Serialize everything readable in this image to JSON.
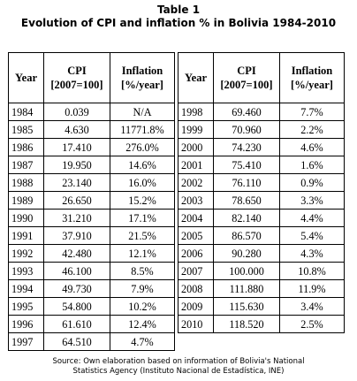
{
  "caption": {
    "title": "Table 1",
    "subtitle": "Evolution of CPI and inflation % in Bolivia 1984-2010"
  },
  "headers": {
    "year": "Year",
    "cpi_line1": "CPI",
    "cpi_line2": "[2007=100]",
    "inflation_line1": "Inflation",
    "inflation_line2": "[%/year]"
  },
  "left_rows": [
    {
      "year": "1984",
      "cpi": "0.039",
      "inflation": "N/A"
    },
    {
      "year": "1985",
      "cpi": "4.630",
      "inflation": "11771.8%"
    },
    {
      "year": "1986",
      "cpi": "17.410",
      "inflation": "276.0%"
    },
    {
      "year": "1987",
      "cpi": "19.950",
      "inflation": "14.6%"
    },
    {
      "year": "1988",
      "cpi": "23.140",
      "inflation": "16.0%"
    },
    {
      "year": "1989",
      "cpi": "26.650",
      "inflation": "15.2%"
    },
    {
      "year": "1990",
      "cpi": "31.210",
      "inflation": "17.1%"
    },
    {
      "year": "1991",
      "cpi": "37.910",
      "inflation": "21.5%"
    },
    {
      "year": "1992",
      "cpi": "42.480",
      "inflation": "12.1%"
    },
    {
      "year": "1993",
      "cpi": "46.100",
      "inflation": "8.5%"
    },
    {
      "year": "1994",
      "cpi": "49.730",
      "inflation": "7.9%"
    },
    {
      "year": "1995",
      "cpi": "54.800",
      "inflation": "10.2%"
    },
    {
      "year": "1996",
      "cpi": "61.610",
      "inflation": "12.4%"
    },
    {
      "year": "1997",
      "cpi": "64.510",
      "inflation": "4.7%"
    }
  ],
  "right_rows": [
    {
      "year": "1998",
      "cpi": "69.460",
      "inflation": "7.7%"
    },
    {
      "year": "1999",
      "cpi": "70.960",
      "inflation": "2.2%"
    },
    {
      "year": "2000",
      "cpi": "74.230",
      "inflation": "4.6%"
    },
    {
      "year": "2001",
      "cpi": "75.410",
      "inflation": "1.6%"
    },
    {
      "year": "2002",
      "cpi": "76.110",
      "inflation": "0.9%"
    },
    {
      "year": "2003",
      "cpi": "78.650",
      "inflation": "3.3%"
    },
    {
      "year": "2004",
      "cpi": "82.140",
      "inflation": "4.4%"
    },
    {
      "year": "2005",
      "cpi": "86.570",
      "inflation": "5.4%"
    },
    {
      "year": "2006",
      "cpi": "90.280",
      "inflation": "4.3%"
    },
    {
      "year": "2007",
      "cpi": "100.000",
      "inflation": "10.8%"
    },
    {
      "year": "2008",
      "cpi": "111.880",
      "inflation": "11.9%"
    },
    {
      "year": "2009",
      "cpi": "115.630",
      "inflation": "3.4%"
    },
    {
      "year": "2010",
      "cpi": "118.520",
      "inflation": "2.5%"
    }
  ],
  "source": {
    "line1": "Source: Own elaboration based on information of Bolivia's National",
    "line2": "Statistics Agency (Instituto Nacional de Estadística, INE)"
  }
}
